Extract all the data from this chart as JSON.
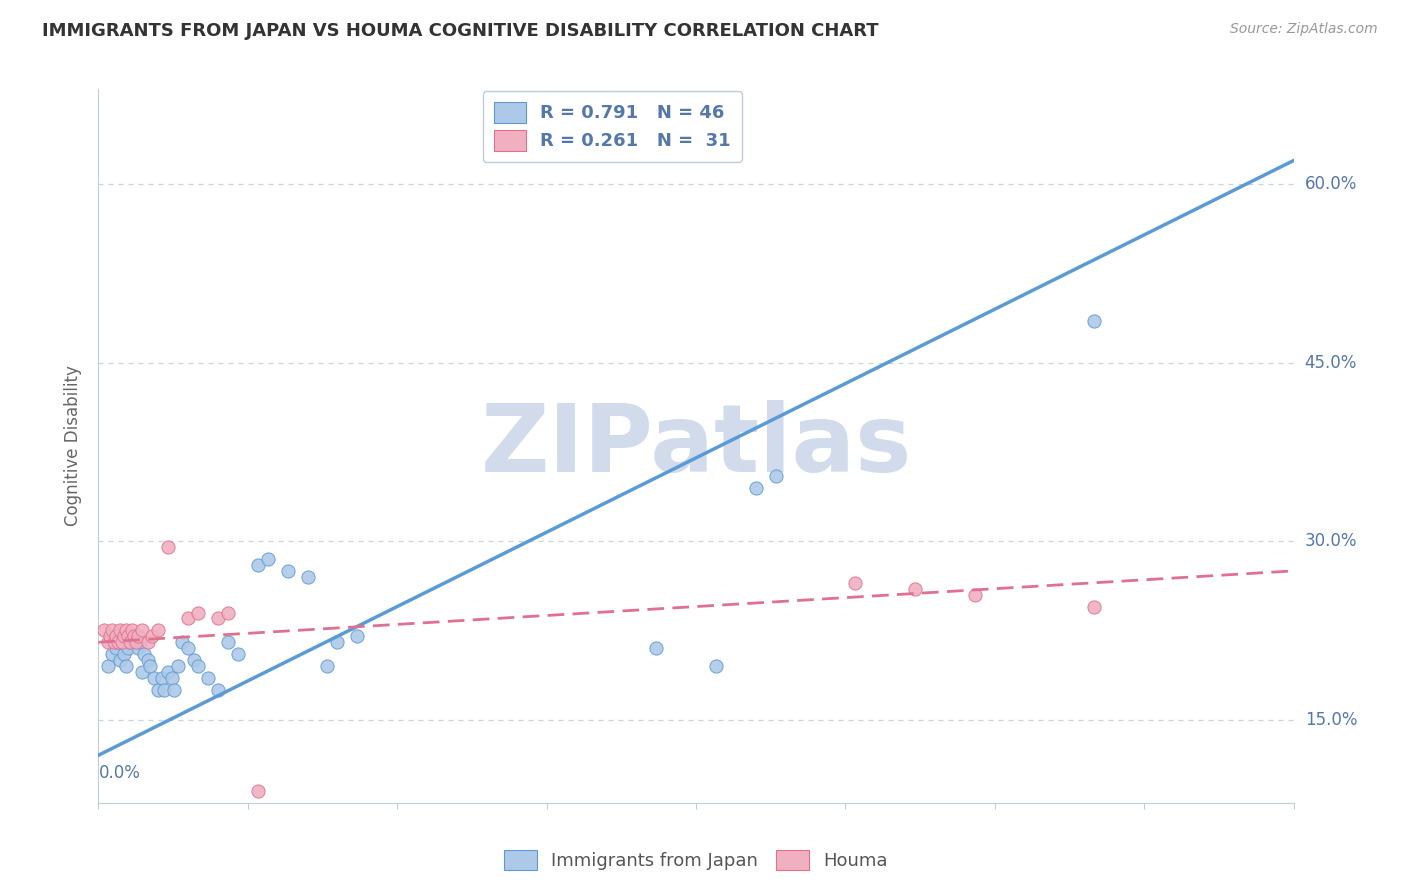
{
  "title": "IMMIGRANTS FROM JAPAN VS HOUMA COGNITIVE DISABILITY CORRELATION CHART",
  "source": "Source: ZipAtlas.com",
  "ylabel": "Cognitive Disability",
  "xlim": [
    0.0,
    0.6
  ],
  "ylim": [
    0.08,
    0.68
  ],
  "y_ticks": [
    0.15,
    0.3,
    0.45,
    0.6
  ],
  "y_tick_labels": [
    "15.0%",
    "30.0%",
    "45.0%",
    "60.0%"
  ],
  "x_ticks": [
    0.0,
    0.075,
    0.15,
    0.225,
    0.3,
    0.375,
    0.45,
    0.525,
    0.6
  ],
  "legend_r_blue": "R = 0.791",
  "legend_n_blue": "N = 46",
  "legend_r_pink": "R = 0.261",
  "legend_n_pink": "N =  31",
  "blue_scatter": [
    [
      0.005,
      0.195
    ],
    [
      0.007,
      0.205
    ],
    [
      0.009,
      0.21
    ],
    [
      0.01,
      0.215
    ],
    [
      0.01,
      0.22
    ],
    [
      0.011,
      0.2
    ],
    [
      0.013,
      0.205
    ],
    [
      0.014,
      0.195
    ],
    [
      0.015,
      0.21
    ],
    [
      0.016,
      0.215
    ],
    [
      0.018,
      0.215
    ],
    [
      0.019,
      0.22
    ],
    [
      0.02,
      0.21
    ],
    [
      0.021,
      0.215
    ],
    [
      0.022,
      0.19
    ],
    [
      0.023,
      0.205
    ],
    [
      0.025,
      0.2
    ],
    [
      0.026,
      0.195
    ],
    [
      0.028,
      0.185
    ],
    [
      0.03,
      0.175
    ],
    [
      0.032,
      0.185
    ],
    [
      0.033,
      0.175
    ],
    [
      0.035,
      0.19
    ],
    [
      0.037,
      0.185
    ],
    [
      0.038,
      0.175
    ],
    [
      0.04,
      0.195
    ],
    [
      0.042,
      0.215
    ],
    [
      0.045,
      0.21
    ],
    [
      0.048,
      0.2
    ],
    [
      0.05,
      0.195
    ],
    [
      0.055,
      0.185
    ],
    [
      0.06,
      0.175
    ],
    [
      0.065,
      0.215
    ],
    [
      0.07,
      0.205
    ],
    [
      0.08,
      0.28
    ],
    [
      0.085,
      0.285
    ],
    [
      0.095,
      0.275
    ],
    [
      0.105,
      0.27
    ],
    [
      0.115,
      0.195
    ],
    [
      0.12,
      0.215
    ],
    [
      0.13,
      0.22
    ],
    [
      0.28,
      0.21
    ],
    [
      0.31,
      0.195
    ],
    [
      0.33,
      0.345
    ],
    [
      0.34,
      0.355
    ],
    [
      0.5,
      0.485
    ]
  ],
  "pink_scatter": [
    [
      0.003,
      0.225
    ],
    [
      0.005,
      0.215
    ],
    [
      0.006,
      0.22
    ],
    [
      0.007,
      0.225
    ],
    [
      0.008,
      0.215
    ],
    [
      0.009,
      0.22
    ],
    [
      0.01,
      0.215
    ],
    [
      0.011,
      0.225
    ],
    [
      0.012,
      0.215
    ],
    [
      0.013,
      0.22
    ],
    [
      0.014,
      0.225
    ],
    [
      0.015,
      0.22
    ],
    [
      0.016,
      0.215
    ],
    [
      0.017,
      0.225
    ],
    [
      0.018,
      0.22
    ],
    [
      0.019,
      0.215
    ],
    [
      0.02,
      0.22
    ],
    [
      0.022,
      0.225
    ],
    [
      0.025,
      0.215
    ],
    [
      0.027,
      0.22
    ],
    [
      0.03,
      0.225
    ],
    [
      0.035,
      0.295
    ],
    [
      0.045,
      0.235
    ],
    [
      0.05,
      0.24
    ],
    [
      0.06,
      0.235
    ],
    [
      0.065,
      0.24
    ],
    [
      0.08,
      0.09
    ],
    [
      0.38,
      0.265
    ],
    [
      0.41,
      0.26
    ],
    [
      0.44,
      0.255
    ],
    [
      0.5,
      0.245
    ]
  ],
  "blue_line_x": [
    0.0,
    0.6
  ],
  "blue_line_y": [
    0.12,
    0.62
  ],
  "pink_line_x": [
    0.0,
    0.6
  ],
  "pink_line_y": [
    0.215,
    0.275
  ],
  "blue_color": "#5b9bd5",
  "pink_color": "#e07090",
  "blue_scatter_color": "#aec9e8",
  "pink_scatter_color": "#f0b0c0",
  "watermark_text": "ZIPatlas",
  "watermark_color": "#ccd8ea",
  "grid_color": "#c8d4e0",
  "spine_color": "#c0ccd8",
  "label_color": "#5577aa",
  "title_color": "#333333",
  "source_color": "#999999",
  "background_color": "#ffffff"
}
